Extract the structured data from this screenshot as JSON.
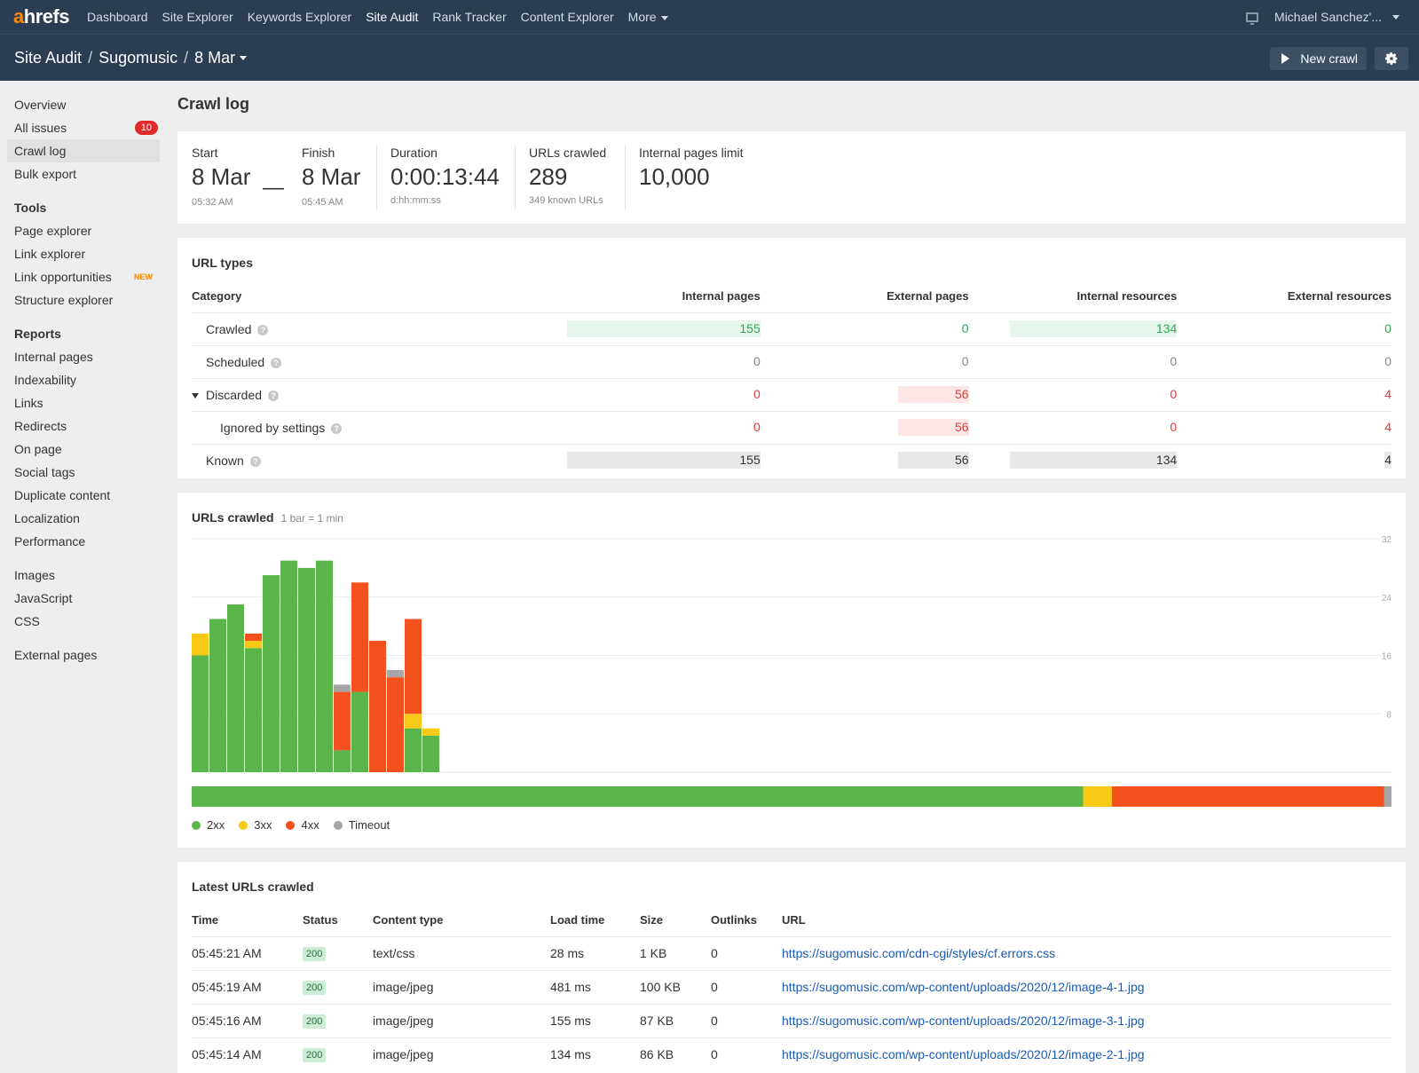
{
  "topnav": {
    "logo_a": "a",
    "logo_rest": "hrefs",
    "items": [
      "Dashboard",
      "Site Explorer",
      "Keywords Explorer",
      "Site Audit",
      "Rank Tracker",
      "Content Explorer",
      "More"
    ],
    "user": "Michael Sanchez'..."
  },
  "breadcrumb": {
    "tool": "Site Audit",
    "project": "Sugomusic",
    "crawl": "8 Mar"
  },
  "actions": {
    "new_crawl": "New crawl"
  },
  "sidebar": {
    "top": [
      "Overview",
      "All issues",
      "Crawl log",
      "Bulk export"
    ],
    "all_issues_count": "10",
    "tools_head": "Tools",
    "tools": [
      "Page explorer",
      "Link explorer",
      "Link opportunities",
      "Structure explorer"
    ],
    "new_badge": "NEW",
    "reports_head": "Reports",
    "reports": [
      "Internal pages",
      "Indexability",
      "Links",
      "Redirects",
      "On page",
      "Social tags",
      "Duplicate content",
      "Localization",
      "Performance"
    ],
    "resources": [
      "Images",
      "JavaScript",
      "CSS"
    ],
    "external": "External pages"
  },
  "page_title": "Crawl log",
  "summary": {
    "start_label": "Start",
    "start_date": "8 Mar",
    "start_time": "05:32 AM",
    "dash": "—",
    "finish_label": "Finish",
    "finish_date": "8 Mar",
    "finish_time": "05:45 AM",
    "duration_label": "Duration",
    "duration": "0:00:13:44",
    "duration_fmt": "d:hh:mm:ss",
    "crawled_label": "URLs crawled",
    "crawled": "289",
    "known": "349 known URLs",
    "limit_label": "Internal pages limit",
    "limit": "10,000"
  },
  "url_types": {
    "title": "URL types",
    "headers": [
      "Category",
      "Internal pages",
      "External pages",
      "Internal resources",
      "External resources"
    ],
    "rows": [
      {
        "label": "Crawled",
        "values": [
          "155",
          "0",
          "134",
          "0"
        ]
      },
      {
        "label": "Scheduled",
        "values": [
          "0",
          "0",
          "0",
          "0"
        ]
      },
      {
        "label": "Discarded",
        "values": [
          "0",
          "56",
          "0",
          "4"
        ]
      },
      {
        "label": "Ignored by settings",
        "values": [
          "0",
          "56",
          "0",
          "4"
        ]
      },
      {
        "label": "Known",
        "values": [
          "155",
          "56",
          "134",
          "4"
        ]
      }
    ]
  },
  "crawl_chart": {
    "title": "URLs crawled",
    "subtitle": "1 bar = 1 min",
    "legend": [
      "2xx",
      "3xx",
      "4xx",
      "Timeout"
    ]
  },
  "chart_data": {
    "type": "bar",
    "stacked": true,
    "categories": [
      "1",
      "2",
      "3",
      "4",
      "5",
      "6",
      "7",
      "8",
      "9",
      "10",
      "11",
      "12",
      "13",
      "14"
    ],
    "yticks": [
      8,
      16,
      24,
      32
    ],
    "ylim": [
      0,
      32
    ],
    "series": [
      {
        "name": "2xx",
        "color": "#5ab54a",
        "values": [
          16,
          21,
          23,
          17,
          27,
          29,
          28,
          29,
          3,
          11,
          0,
          0,
          6,
          5
        ]
      },
      {
        "name": "3xx",
        "color": "#f8c916",
        "values": [
          3,
          0,
          0,
          1,
          0,
          0,
          0,
          0,
          0,
          0,
          0,
          0,
          2,
          1
        ]
      },
      {
        "name": "4xx",
        "color": "#f5511e",
        "values": [
          0,
          0,
          0,
          1,
          0,
          0,
          0,
          0,
          8,
          15,
          18,
          13,
          13,
          0
        ]
      },
      {
        "name": "Timeout",
        "color": "#a6a6a6",
        "values": [
          0,
          0,
          0,
          0,
          0,
          0,
          0,
          0,
          1,
          0,
          0,
          1,
          0,
          0
        ]
      }
    ],
    "distribution": [
      {
        "name": "2xx",
        "color": "#5ab54a",
        "value": 0.743
      },
      {
        "name": "3xx",
        "color": "#f8c916",
        "value": 0.024
      },
      {
        "name": "4xx",
        "color": "#f5511e",
        "value": 0.227
      },
      {
        "name": "Timeout",
        "color": "#a6a6a6",
        "value": 0.006
      }
    ]
  },
  "latest": {
    "title": "Latest URLs crawled",
    "headers": [
      "Time",
      "Status",
      "Content type",
      "Load time",
      "Size",
      "Outlinks",
      "URL"
    ],
    "rows": [
      [
        "05:45:21 AM",
        "200",
        "text/css",
        "28 ms",
        "1 KB",
        "0",
        "https://sugomusic.com/cdn-cgi/styles/cf.errors.css"
      ],
      [
        "05:45:19 AM",
        "200",
        "image/jpeg",
        "481 ms",
        "100 KB",
        "0",
        "https://sugomusic.com/wp-content/uploads/2020/12/image-4-1.jpg"
      ],
      [
        "05:45:16 AM",
        "200",
        "image/jpeg",
        "155 ms",
        "87 KB",
        "0",
        "https://sugomusic.com/wp-content/uploads/2020/12/image-3-1.jpg"
      ],
      [
        "05:45:14 AM",
        "200",
        "image/jpeg",
        "134 ms",
        "86 KB",
        "0",
        "https://sugomusic.com/wp-content/uploads/2020/12/image-2-1.jpg"
      ]
    ]
  }
}
